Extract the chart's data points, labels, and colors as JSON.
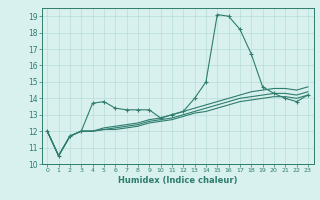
{
  "x": [
    0,
    1,
    2,
    3,
    4,
    5,
    6,
    7,
    8,
    9,
    10,
    11,
    12,
    13,
    14,
    15,
    16,
    17,
    18,
    19,
    20,
    21,
    22,
    23
  ],
  "line1": [
    12.0,
    10.5,
    11.7,
    12.0,
    13.7,
    13.8,
    13.4,
    13.3,
    13.3,
    13.3,
    12.8,
    13.0,
    13.2,
    14.0,
    15.0,
    19.1,
    19.0,
    18.2,
    16.7,
    14.7,
    14.3,
    14.0,
    13.8,
    14.2
  ],
  "line2": [
    12.0,
    10.5,
    11.7,
    12.0,
    12.0,
    12.2,
    12.3,
    12.4,
    12.5,
    12.7,
    12.8,
    13.0,
    13.2,
    13.4,
    13.6,
    13.8,
    14.0,
    14.2,
    14.4,
    14.5,
    14.6,
    14.6,
    14.5,
    14.7
  ],
  "line3": [
    12.0,
    10.5,
    11.7,
    12.0,
    12.0,
    12.1,
    12.2,
    12.3,
    12.4,
    12.6,
    12.7,
    12.8,
    13.0,
    13.2,
    13.4,
    13.6,
    13.8,
    14.0,
    14.1,
    14.2,
    14.3,
    14.3,
    14.2,
    14.4
  ],
  "line4": [
    12.0,
    10.5,
    11.7,
    12.0,
    12.0,
    12.1,
    12.1,
    12.2,
    12.3,
    12.5,
    12.6,
    12.7,
    12.9,
    13.1,
    13.2,
    13.4,
    13.6,
    13.8,
    13.9,
    14.0,
    14.1,
    14.1,
    14.0,
    14.2
  ],
  "color": "#2e7d6e",
  "bg_color": "#d8f0ee",
  "grid_color": "#b8ddd8",
  "xlabel": "Humidex (Indice chaleur)",
  "ylim": [
    10,
    19.5
  ],
  "xlim": [
    -0.5,
    23.5
  ],
  "yticks": [
    10,
    11,
    12,
    13,
    14,
    15,
    16,
    17,
    18,
    19
  ],
  "xticks": [
    0,
    1,
    2,
    3,
    4,
    5,
    6,
    7,
    8,
    9,
    10,
    11,
    12,
    13,
    14,
    15,
    16,
    17,
    18,
    19,
    20,
    21,
    22,
    23
  ]
}
